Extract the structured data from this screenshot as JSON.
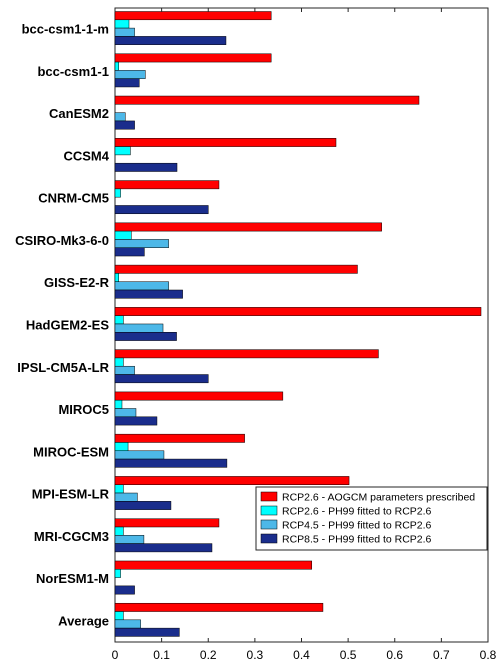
{
  "chart_data": {
    "type": "bar",
    "orientation": "horizontal",
    "categories": [
      "bcc-csm1-1-m",
      "bcc-csm1-1",
      "CanESM2",
      "CCSM4",
      "CNRM-CM5",
      "CSIRO-Mk3-6-0",
      "GISS-E2-R",
      "HadGEM2-ES",
      "IPSL-CM5A-LR",
      "MIROC5",
      "MIROC-ESM",
      "MPI-ESM-LR",
      "MRI-CGCM3",
      "NorESM1-M",
      "Average"
    ],
    "series": [
      {
        "name": "RCP2.6 - AOGCM parameters prescribed",
        "color": "#ff0000",
        "values": [
          0.335,
          0.335,
          0.652,
          0.474,
          0.223,
          0.572,
          0.52,
          0.785,
          0.565,
          0.36,
          0.278,
          0.502,
          0.223,
          0.422,
          0.446
        ]
      },
      {
        "name": "RCP2.6 - PH99 fitted to RCP2.6",
        "color": "#00ffff",
        "values": [
          0.03,
          0.008,
          0.0,
          0.033,
          0.012,
          0.035,
          0.008,
          0.018,
          0.018,
          0.015,
          0.028,
          0.018,
          0.018,
          0.012,
          0.018
        ]
      },
      {
        "name": "RCP4.5 - PH99 fitted to RCP2.6",
        "color": "#4db8e8",
        "values": [
          0.042,
          0.065,
          0.022,
          0.0,
          0.0,
          0.115,
          0.115,
          0.103,
          0.042,
          0.045,
          0.105,
          0.048,
          0.062,
          0.0,
          0.055
        ]
      },
      {
        "name": "RCP8.5 - PH99 fitted to RCP2.6",
        "color": "#1a2d8c",
        "values": [
          0.238,
          0.052,
          0.042,
          0.133,
          0.2,
          0.063,
          0.145,
          0.132,
          0.2,
          0.09,
          0.24,
          0.12,
          0.208,
          0.042,
          0.138
        ]
      }
    ],
    "xlim": [
      0,
      0.8
    ],
    "xticks": [
      0,
      0.1,
      0.2,
      0.3,
      0.4,
      0.5,
      0.6,
      0.7,
      0.8
    ],
    "xtick_labels": [
      "0",
      "0.1",
      "0.2",
      "0.3",
      "0.4",
      "0.5",
      "0.6",
      "0.7",
      "0.8"
    ],
    "title": "",
    "xlabel": "",
    "ylabel": "",
    "grid": false,
    "legend_position": "bottom-right"
  }
}
